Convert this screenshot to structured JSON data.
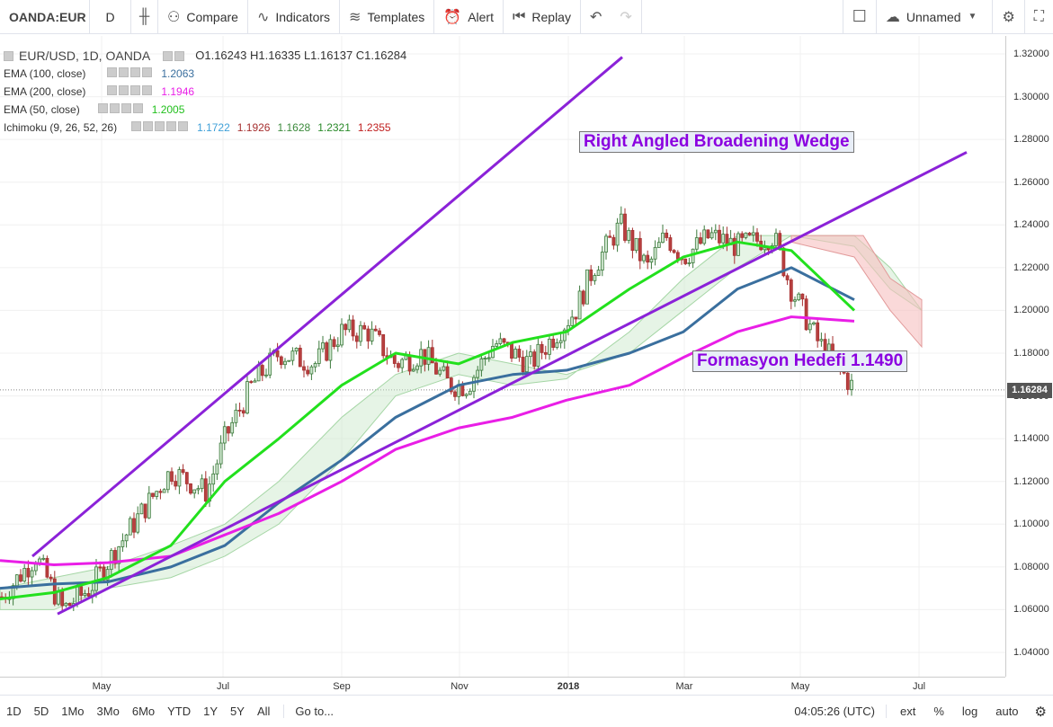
{
  "toolbar": {
    "symbol": "OANDA:EUR",
    "interval": "D",
    "compare": "Compare",
    "indicators": "Indicators",
    "templates": "Templates",
    "alert": "Alert",
    "replay": "Replay",
    "layout_name": "Unnamed"
  },
  "legend": {
    "title": "EUR/USD, 1D, OANDA",
    "ohlc": "O1.16243  H1.16335  L1.16137  C1.16284",
    "ema100_label": "EMA (100, close)",
    "ema100_value": "1.2063",
    "ema200_label": "EMA (200, close)",
    "ema200_value": "1.1946",
    "ema50_label": "EMA (50, close)",
    "ema50_value": "1.2005",
    "ichimoku_label": "Ichimoku (9, 26, 52, 26)",
    "ichimoku_values": [
      "1.1722",
      "1.1926",
      "1.1628",
      "1.2321",
      "1.2355"
    ]
  },
  "annotations": {
    "wedge": "Right Angled Broadening Wedge",
    "target": "Formasyon Hedefi 1.1490"
  },
  "price_tag": "1.16284",
  "colors": {
    "ema100": "#3a6f9e",
    "ema200": "#e91ee6",
    "ema50": "#22e01d",
    "trendline": "#8b22d8",
    "candle_up": "#3c7a3c",
    "candle_down": "#a63030"
  },
  "bottom": {
    "ranges": [
      "1D",
      "5D",
      "1Mo",
      "3Mo",
      "6Mo",
      "YTD",
      "1Y",
      "5Y",
      "All"
    ],
    "goto": "Go to...",
    "clock": "04:05:26 (UTC)",
    "ext": "ext",
    "pct": "%",
    "log": "log",
    "auto": "auto"
  },
  "chart_data": {
    "type": "line",
    "price_ticks": [
      "1.32000",
      "1.30000",
      "1.28000",
      "1.26000",
      "1.24000",
      "1.22000",
      "1.20000",
      "1.18000",
      "1.16000",
      "1.14000",
      "1.12000",
      "1.10000",
      "1.08000",
      "1.06000",
      "1.04000"
    ],
    "time_ticks": [
      "May",
      "Jul",
      "Sep",
      "Nov",
      "2018",
      "Mar",
      "May",
      "Jul"
    ],
    "ylim": [
      1.03,
      1.32
    ],
    "series": [
      {
        "name": "EMA (100, close)",
        "color": "#3a6f9e",
        "values": [
          1.07,
          1.072,
          1.073,
          1.08,
          1.09,
          1.11,
          1.13,
          1.15,
          1.165,
          1.17,
          1.172,
          1.18,
          1.19,
          1.21,
          1.22,
          1.205
        ]
      },
      {
        "name": "EMA (200, close)",
        "color": "#e91ee6",
        "values": [
          1.083,
          1.081,
          1.082,
          1.085,
          1.095,
          1.105,
          1.12,
          1.135,
          1.145,
          1.15,
          1.158,
          1.165,
          1.178,
          1.19,
          1.197,
          1.195
        ]
      },
      {
        "name": "EMA (50, close)",
        "color": "#22e01d",
        "values": [
          1.065,
          1.068,
          1.075,
          1.09,
          1.12,
          1.14,
          1.165,
          1.18,
          1.175,
          1.185,
          1.19,
          1.21,
          1.225,
          1.232,
          1.228,
          1.2
        ]
      }
    ]
  }
}
